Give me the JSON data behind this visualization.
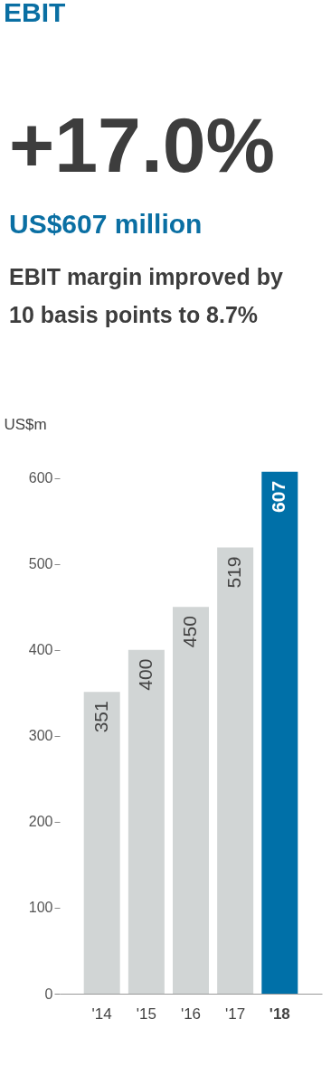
{
  "chart_data": {
    "type": "bar",
    "title": "EBIT",
    "annotations": [
      "+17.0%",
      "US$607 million",
      "EBIT margin improved by 10 basis points to 8.7%"
    ],
    "ylabel": "US$m",
    "categories": [
      "'14",
      "'15",
      "'16",
      "'17",
      "'18"
    ],
    "values": [
      351,
      400,
      450,
      519,
      607
    ],
    "colors": [
      "#d1d5d5",
      "#d1d5d5",
      "#d1d5d5",
      "#d1d5d5",
      "#0070a8"
    ],
    "data_labels": true,
    "ylim": [
      0,
      610
    ],
    "yticks": [
      0,
      100,
      200,
      300,
      400,
      500,
      600
    ],
    "grid": false
  }
}
